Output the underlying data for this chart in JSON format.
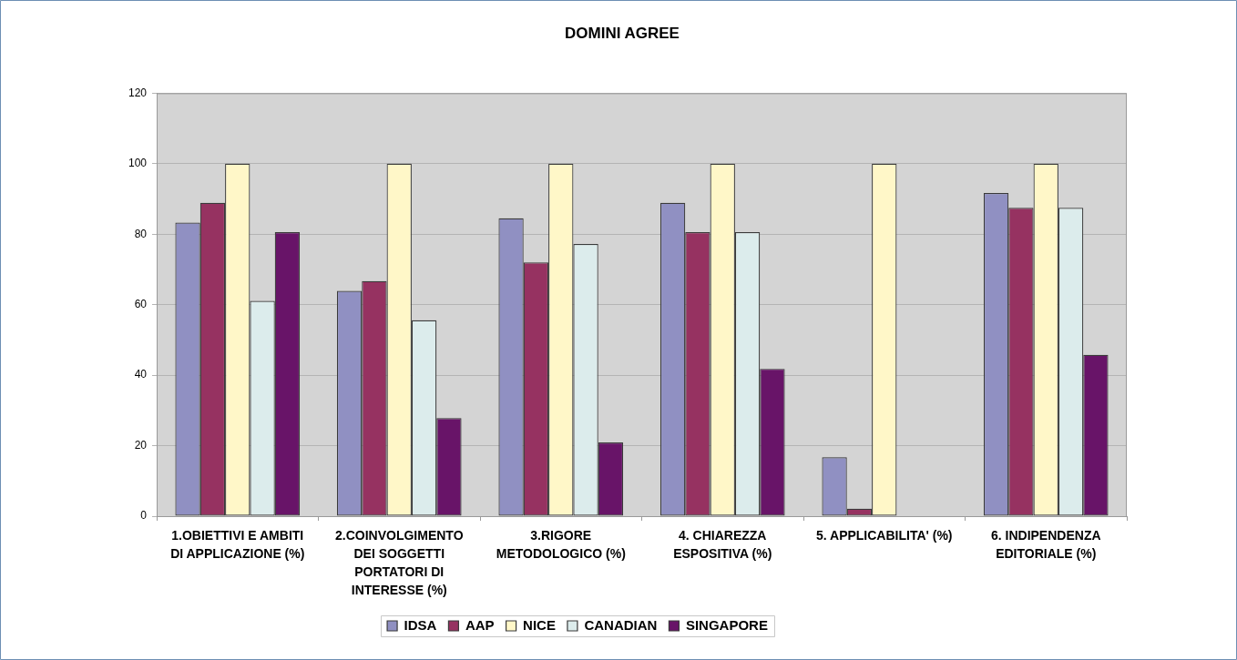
{
  "chart_data": {
    "type": "bar",
    "title": "DOMINI AGREE",
    "categories": [
      "1.OBIETTIVI E AMBITI DI APPLICAZIONE (%)",
      "2.COINVOLGIMENTO DEI SOGGETTI PORTATORI DI INTERESSE (%)",
      "3.RIGORE METODOLOGICO (%)",
      "4. CHIAREZZA ESPOSITIVA (%)",
      "5. APPLICABILITA' (%)",
      "6. INDIPENDENZA EDITORIALE (%)"
    ],
    "series": [
      {
        "name": "IDSA",
        "color": "#9090c2",
        "values": [
          83.3,
          63.9,
          84.5,
          88.9,
          16.7,
          91.7
        ]
      },
      {
        "name": "AAP",
        "color": "#963261",
        "values": [
          88.9,
          66.7,
          72.0,
          80.6,
          2.1,
          87.5
        ]
      },
      {
        "name": "NICE",
        "color": "#fff7c8",
        "values": [
          100,
          100,
          100,
          100,
          100,
          100
        ]
      },
      {
        "name": "CANADIAN",
        "color": "#dcecec",
        "values": [
          61.1,
          55.6,
          77.2,
          80.6,
          null,
          87.5
        ]
      },
      {
        "name": "SINGAPORE",
        "color": "#681468",
        "values": [
          80.6,
          27.8,
          20.9,
          41.8,
          null,
          45.8
        ]
      }
    ],
    "ylim": [
      0,
      120
    ],
    "yticks": [
      0,
      20,
      40,
      60,
      80,
      100,
      120
    ],
    "grid": "y",
    "legend": "bottom"
  }
}
